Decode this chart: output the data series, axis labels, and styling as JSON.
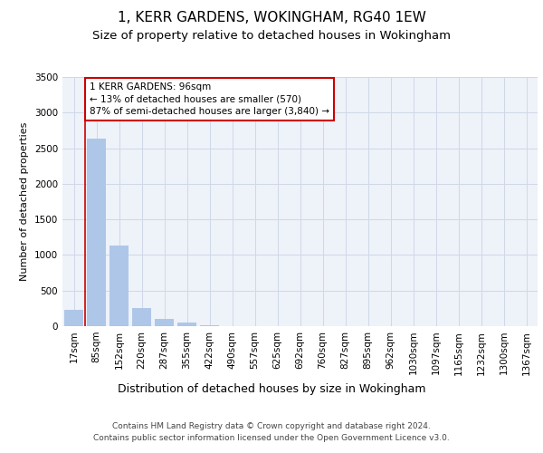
{
  "title": "1, KERR GARDENS, WOKINGHAM, RG40 1EW",
  "subtitle": "Size of property relative to detached houses in Wokingham",
  "xlabel": "Distribution of detached houses by size in Wokingham",
  "ylabel": "Number of detached properties",
  "categories": [
    "17sqm",
    "85sqm",
    "152sqm",
    "220sqm",
    "287sqm",
    "355sqm",
    "422sqm",
    "490sqm",
    "557sqm",
    "625sqm",
    "692sqm",
    "760sqm",
    "827sqm",
    "895sqm",
    "962sqm",
    "1030sqm",
    "1097sqm",
    "1165sqm",
    "1232sqm",
    "1300sqm",
    "1367sqm"
  ],
  "values": [
    230,
    2630,
    1130,
    260,
    100,
    50,
    18,
    0,
    0,
    0,
    0,
    0,
    0,
    0,
    0,
    0,
    0,
    0,
    0,
    0,
    0
  ],
  "bar_color": "#aec6e8",
  "property_line_label": "1 KERR GARDENS: 96sqm",
  "annotation_line1": "← 13% of detached houses are smaller (570)",
  "annotation_line2": "87% of semi-detached houses are larger (3,840) →",
  "annotation_box_color": "#ffffff",
  "annotation_box_edgecolor": "#cc0000",
  "ylim": [
    0,
    3500
  ],
  "yticks": [
    0,
    500,
    1000,
    1500,
    2000,
    2500,
    3000,
    3500
  ],
  "grid_color": "#d0d8e8",
  "background_color": "#eef2f9",
  "footer_line1": "Contains HM Land Registry data © Crown copyright and database right 2024.",
  "footer_line2": "Contains public sector information licensed under the Open Government Licence v3.0.",
  "title_fontsize": 11,
  "subtitle_fontsize": 9.5,
  "xlabel_fontsize": 9,
  "ylabel_fontsize": 8,
  "tick_fontsize": 7.5,
  "footer_fontsize": 6.5
}
